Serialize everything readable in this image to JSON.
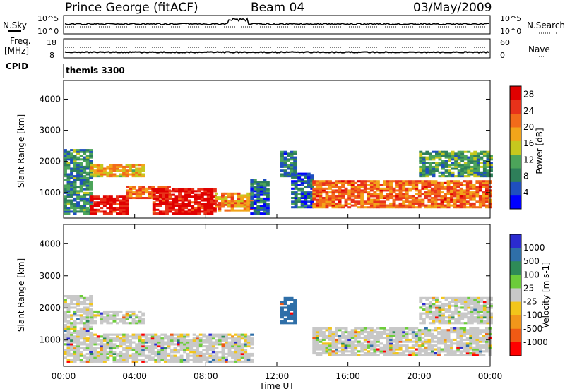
{
  "header": {
    "station": "Prince George (fitACF)",
    "beam": "Beam 04",
    "date": "03/May/2009"
  },
  "summary": {
    "nsky_label": "N.Sky",
    "nsky_ticks": [
      "10^5",
      "10^0"
    ],
    "nsearch_label": "N.Search",
    "nsearch_ticks": [
      "10^5",
      "10^0"
    ],
    "freq_label": "Freq.",
    "freq_unit": "[MHz]",
    "freq_ticks": [
      "18",
      "8"
    ],
    "nave_label": "Nave",
    "nave_ticks": [
      "60",
      "0"
    ],
    "cpid_label": "CPID",
    "cpid_value": "themis 3300"
  },
  "colors": {
    "power_scale": [
      "#0000ff",
      "#1f4fbf",
      "#2e7f5a",
      "#4ca45a",
      "#c6c81e",
      "#f2a51a",
      "#f26b1a",
      "#e8321a",
      "#e00000"
    ],
    "velocity_scale": [
      "#2b2bd0",
      "#2f6fa8",
      "#2e8b57",
      "#6ccc3a",
      "#c8c8c8",
      "#f2c51a",
      "#f2961a",
      "#f05a14",
      "#ff0000"
    ],
    "ground_scatter": "#bdbdbd"
  },
  "chart_data": [
    {
      "type": "heatmap",
      "name": "power-panel",
      "ylabel": "Slant Range [km]",
      "x_range_hours": [
        0,
        24
      ],
      "ylim": [
        180,
        4600
      ],
      "yticks": [
        1000,
        2000,
        3000,
        4000
      ],
      "colorbar": {
        "label": "Power [dB]",
        "range": [
          0,
          30
        ],
        "ticks": [
          "4",
          "8",
          "12",
          "16",
          "20",
          "24",
          "28"
        ]
      },
      "echo_regions": [
        {
          "hours": [
            0.0,
            1.5
          ],
          "range_km": [
            300,
            2400
          ],
          "value_db": 9
        },
        {
          "hours": [
            1.5,
            3.5
          ],
          "range_km": [
            300,
            900
          ],
          "value_db": 28
        },
        {
          "hours": [
            1.5,
            4.5
          ],
          "range_km": [
            1500,
            1900
          ],
          "value_db": 18
        },
        {
          "hours": [
            3.5,
            6.0
          ],
          "range_km": [
            800,
            1200
          ],
          "value_db": 22
        },
        {
          "hours": [
            5.0,
            8.5
          ],
          "range_km": [
            300,
            1100
          ],
          "value_db": 28
        },
        {
          "hours": [
            8.5,
            10.5
          ],
          "range_km": [
            400,
            1000
          ],
          "value_db": 20
        },
        {
          "hours": [
            10.5,
            11.5
          ],
          "range_km": [
            300,
            1400
          ],
          "value_db": 6
        },
        {
          "hours": [
            12.2,
            13.0
          ],
          "range_km": [
            1500,
            2300
          ],
          "value_db": 8
        },
        {
          "hours": [
            12.8,
            14.0
          ],
          "range_km": [
            500,
            1600
          ],
          "value_db": 6
        },
        {
          "hours": [
            14.0,
            24.0
          ],
          "range_km": [
            500,
            1400
          ],
          "value_db": 22
        },
        {
          "hours": [
            20.0,
            24.0
          ],
          "range_km": [
            1500,
            2300
          ],
          "value_db": 10
        }
      ]
    },
    {
      "type": "heatmap",
      "name": "velocity-panel",
      "ylabel": "Slant Range [km]",
      "xlabel": "Time UT",
      "x_range_hours": [
        0,
        24
      ],
      "xticks": [
        "00:00",
        "04:00",
        "08:00",
        "12:00",
        "16:00",
        "20:00",
        "00:00"
      ],
      "ylim": [
        180,
        4600
      ],
      "yticks": [
        1000,
        2000,
        3000,
        4000
      ],
      "colorbar": {
        "label": "Velocity [m s-1]",
        "ticks": [
          "1000",
          "500",
          "100",
          "25",
          "-25",
          "-100",
          "-500",
          "-1000"
        ]
      },
      "echo_regions": [
        {
          "hours": [
            0.0,
            1.5
          ],
          "range_km": [
            300,
            2400
          ],
          "velocity": 0
        },
        {
          "hours": [
            1.5,
            4.5
          ],
          "range_km": [
            1500,
            1900
          ],
          "velocity": 0
        },
        {
          "hours": [
            1.5,
            10.5
          ],
          "range_km": [
            300,
            1200
          ],
          "velocity": 0
        },
        {
          "hours": [
            12.2,
            13.0
          ],
          "range_km": [
            1500,
            2300
          ],
          "velocity": 300
        },
        {
          "hours": [
            14.0,
            24.0
          ],
          "range_km": [
            500,
            1400
          ],
          "velocity": 0
        },
        {
          "hours": [
            20.0,
            24.0
          ],
          "range_km": [
            1500,
            2300
          ],
          "velocity": 0
        }
      ]
    }
  ]
}
